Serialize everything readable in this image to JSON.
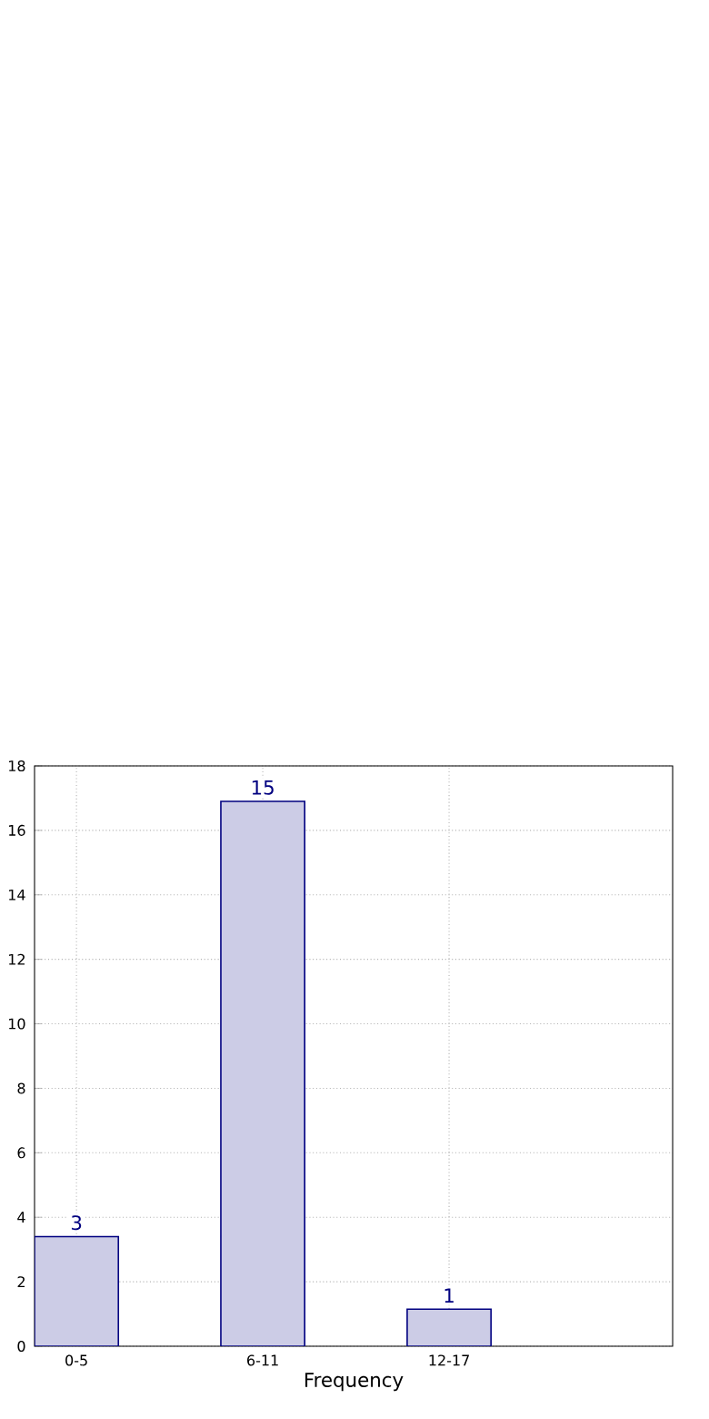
{
  "chart_data": {
    "type": "bar",
    "xlabel": "Frequency",
    "categories": [
      "0-5",
      "6-11",
      "12-17"
    ],
    "values": [
      3.4,
      16.9,
      1.15
    ],
    "color": "#ccccE6",
    "ylim": [
      0,
      18
    ],
    "yticks": [
      0,
      2,
      4,
      6,
      8,
      10,
      12,
      14,
      16,
      18
    ],
    "grid": true,
    "annotations": [
      {
        "text": "3",
        "x": "0-5",
        "y": 3.4
      },
      {
        "text": "15",
        "x": "6-11",
        "y": 16.9
      },
      {
        "text": "1",
        "x": "12-17",
        "y": 1.15
      }
    ]
  }
}
